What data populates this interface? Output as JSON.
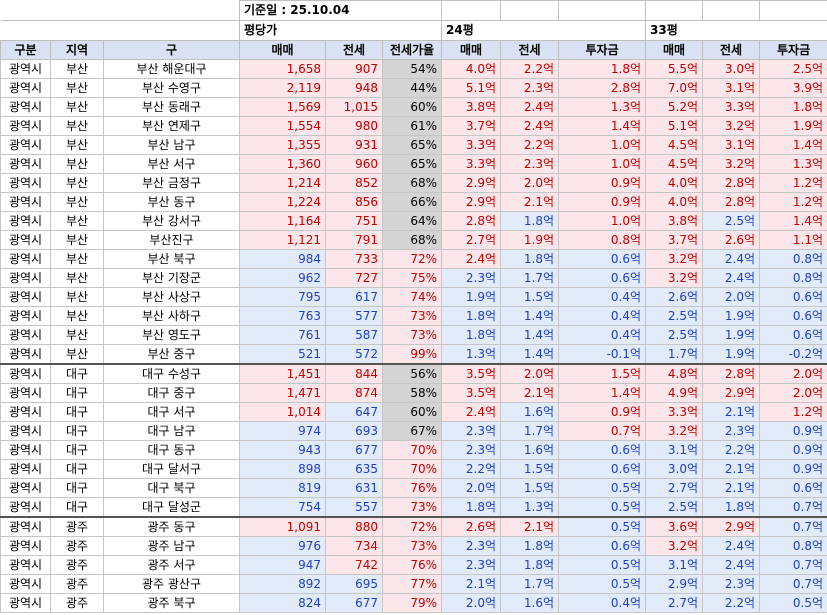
{
  "base_date_label": "기준일 : 25.10.04",
  "group_headers": {
    "price_per_pyeong": "평당가",
    "p24": "24평",
    "p33": "33평"
  },
  "columns": [
    "구분",
    "지역",
    "구",
    "매매",
    "전세",
    "전세가율",
    "매매",
    "전세",
    "투자금",
    "매매",
    "전세",
    "투자금"
  ],
  "rows": [
    {
      "type": "광역시",
      "region": "부산",
      "gu": "부산 해운대구",
      "sale": "1,658",
      "jeonse": "907",
      "ratio": "54%",
      "s24": "4.0억",
      "j24": "2.2억",
      "i24": "1.8억",
      "s33": "5.5억",
      "j33": "3.0억",
      "i33": "2.5억"
    },
    {
      "type": "광역시",
      "region": "부산",
      "gu": "부산 수영구",
      "sale": "2,119",
      "jeonse": "948",
      "ratio": "44%",
      "s24": "5.1억",
      "j24": "2.3억",
      "i24": "2.8억",
      "s33": "7.0억",
      "j33": "3.1억",
      "i33": "3.9억"
    },
    {
      "type": "광역시",
      "region": "부산",
      "gu": "부산 동래구",
      "sale": "1,569",
      "jeonse": "1,015",
      "ratio": "60%",
      "s24": "3.8억",
      "j24": "2.4억",
      "i24": "1.3억",
      "s33": "5.2억",
      "j33": "3.3억",
      "i33": "1.8억"
    },
    {
      "type": "광역시",
      "region": "부산",
      "gu": "부산 연제구",
      "sale": "1,554",
      "jeonse": "980",
      "ratio": "61%",
      "s24": "3.7억",
      "j24": "2.4억",
      "i24": "1.4억",
      "s33": "5.1억",
      "j33": "3.2억",
      "i33": "1.9억"
    },
    {
      "type": "광역시",
      "region": "부산",
      "gu": "부산 남구",
      "sale": "1,355",
      "jeonse": "931",
      "ratio": "65%",
      "s24": "3.3억",
      "j24": "2.2억",
      "i24": "1.0억",
      "s33": "4.5억",
      "j33": "3.1억",
      "i33": "1.4억"
    },
    {
      "type": "광역시",
      "region": "부산",
      "gu": "부산 서구",
      "sale": "1,360",
      "jeonse": "960",
      "ratio": "65%",
      "s24": "3.3억",
      "j24": "2.3억",
      "i24": "1.0억",
      "s33": "4.5억",
      "j33": "3.2억",
      "i33": "1.3억"
    },
    {
      "type": "광역시",
      "region": "부산",
      "gu": "부산 금정구",
      "sale": "1,214",
      "jeonse": "852",
      "ratio": "68%",
      "s24": "2.9억",
      "j24": "2.0억",
      "i24": "0.9억",
      "s33": "4.0억",
      "j33": "2.8억",
      "i33": "1.2억"
    },
    {
      "type": "광역시",
      "region": "부산",
      "gu": "부산 동구",
      "sale": "1,224",
      "jeonse": "856",
      "ratio": "66%",
      "s24": "2.9억",
      "j24": "2.1억",
      "i24": "0.9억",
      "s33": "4.0억",
      "j33": "2.8억",
      "i33": "1.2억"
    },
    {
      "type": "광역시",
      "region": "부산",
      "gu": "부산 강서구",
      "sale": "1,164",
      "jeonse": "751",
      "ratio": "64%",
      "s24": "2.8억",
      "j24": "1.8억",
      "i24": "1.0억",
      "s33": "3.8억",
      "j33": "2.5억",
      "i33": "1.4억"
    },
    {
      "type": "광역시",
      "region": "부산",
      "gu": "부산진구",
      "sale": "1,121",
      "jeonse": "791",
      "ratio": "68%",
      "s24": "2.7억",
      "j24": "1.9억",
      "i24": "0.8억",
      "s33": "3.7억",
      "j33": "2.6억",
      "i33": "1.1억"
    },
    {
      "type": "광역시",
      "region": "부산",
      "gu": "부산 북구",
      "sale": "984",
      "jeonse": "733",
      "ratio": "72%",
      "s24": "2.4억",
      "j24": "1.8억",
      "i24": "0.6억",
      "s33": "3.2억",
      "j33": "2.4억",
      "i33": "0.8억"
    },
    {
      "type": "광역시",
      "region": "부산",
      "gu": "부산 기장군",
      "sale": "962",
      "jeonse": "727",
      "ratio": "75%",
      "s24": "2.3억",
      "j24": "1.7억",
      "i24": "0.6억",
      "s33": "3.2억",
      "j33": "2.4억",
      "i33": "0.8억"
    },
    {
      "type": "광역시",
      "region": "부산",
      "gu": "부산 사상구",
      "sale": "795",
      "jeonse": "617",
      "ratio": "74%",
      "s24": "1.9억",
      "j24": "1.5억",
      "i24": "0.4억",
      "s33": "2.6억",
      "j33": "2.0억",
      "i33": "0.6억"
    },
    {
      "type": "광역시",
      "region": "부산",
      "gu": "부산 사하구",
      "sale": "763",
      "jeonse": "577",
      "ratio": "73%",
      "s24": "1.8억",
      "j24": "1.4억",
      "i24": "0.4억",
      "s33": "2.5억",
      "j33": "1.9억",
      "i33": "0.6억"
    },
    {
      "type": "광역시",
      "region": "부산",
      "gu": "부산 영도구",
      "sale": "761",
      "jeonse": "587",
      "ratio": "73%",
      "s24": "1.8억",
      "j24": "1.4억",
      "i24": "0.4억",
      "s33": "2.5억",
      "j33": "1.9억",
      "i33": "0.6억"
    },
    {
      "type": "광역시",
      "region": "부산",
      "gu": "부산 중구",
      "sale": "521",
      "jeonse": "572",
      "ratio": "99%",
      "s24": "1.3억",
      "j24": "1.4억",
      "i24": "-0.1억",
      "s33": "1.7억",
      "j33": "1.9억",
      "i33": "-0.2억"
    },
    {
      "type": "광역시",
      "region": "대구",
      "gu": "대구 수성구",
      "sale": "1,451",
      "jeonse": "844",
      "ratio": "56%",
      "s24": "3.5억",
      "j24": "2.0억",
      "i24": "1.5억",
      "s33": "4.8억",
      "j33": "2.8억",
      "i33": "2.0억"
    },
    {
      "type": "광역시",
      "region": "대구",
      "gu": "대구 중구",
      "sale": "1,471",
      "jeonse": "874",
      "ratio": "58%",
      "s24": "3.5억",
      "j24": "2.1억",
      "i24": "1.4억",
      "s33": "4.9억",
      "j33": "2.9억",
      "i33": "2.0억"
    },
    {
      "type": "광역시",
      "region": "대구",
      "gu": "대구 서구",
      "sale": "1,014",
      "jeonse": "647",
      "ratio": "60%",
      "s24": "2.4억",
      "j24": "1.6억",
      "i24": "0.9억",
      "s33": "3.3억",
      "j33": "2.1억",
      "i33": "1.2억"
    },
    {
      "type": "광역시",
      "region": "대구",
      "gu": "대구 남구",
      "sale": "974",
      "jeonse": "693",
      "ratio": "67%",
      "s24": "2.3억",
      "j24": "1.7억",
      "i24": "0.7억",
      "s33": "3.2억",
      "j33": "2.3억",
      "i33": "0.9억"
    },
    {
      "type": "광역시",
      "region": "대구",
      "gu": "대구 동구",
      "sale": "943",
      "jeonse": "677",
      "ratio": "70%",
      "s24": "2.3억",
      "j24": "1.6억",
      "i24": "0.6억",
      "s33": "3.1억",
      "j33": "2.2억",
      "i33": "0.9억"
    },
    {
      "type": "광역시",
      "region": "대구",
      "gu": "대구 달서구",
      "sale": "898",
      "jeonse": "635",
      "ratio": "70%",
      "s24": "2.2억",
      "j24": "1.5억",
      "i24": "0.6억",
      "s33": "3.0억",
      "j33": "2.1억",
      "i33": "0.9억"
    },
    {
      "type": "광역시",
      "region": "대구",
      "gu": "대구 북구",
      "sale": "819",
      "jeonse": "631",
      "ratio": "76%",
      "s24": "2.0억",
      "j24": "1.5억",
      "i24": "0.5억",
      "s33": "2.7억",
      "j33": "2.1억",
      "i33": "0.6억"
    },
    {
      "type": "광역시",
      "region": "대구",
      "gu": "대구 달성군",
      "sale": "754",
      "jeonse": "557",
      "ratio": "73%",
      "s24": "1.8억",
      "j24": "1.3억",
      "i24": "0.5억",
      "s33": "2.5억",
      "j33": "1.8억",
      "i33": "0.7억"
    },
    {
      "type": "광역시",
      "region": "광주",
      "gu": "광주 동구",
      "sale": "1,091",
      "jeonse": "880",
      "ratio": "72%",
      "s24": "2.6억",
      "j24": "2.1억",
      "i24": "0.5억",
      "s33": "3.6억",
      "j33": "2.9억",
      "i33": "0.7억"
    },
    {
      "type": "광역시",
      "region": "광주",
      "gu": "광주 남구",
      "sale": "976",
      "jeonse": "734",
      "ratio": "73%",
      "s24": "2.3억",
      "j24": "1.8억",
      "i24": "0.6억",
      "s33": "3.2억",
      "j33": "2.4억",
      "i33": "0.8억"
    },
    {
      "type": "광역시",
      "region": "광주",
      "gu": "광주 서구",
      "sale": "947",
      "jeonse": "742",
      "ratio": "76%",
      "s24": "2.3억",
      "j24": "1.8억",
      "i24": "0.5억",
      "s33": "3.1억",
      "j33": "2.4억",
      "i33": "0.7억"
    },
    {
      "type": "광역시",
      "region": "광주",
      "gu": "광주 광산구",
      "sale": "892",
      "jeonse": "695",
      "ratio": "77%",
      "s24": "2.1억",
      "j24": "1.7억",
      "i24": "0.5억",
      "s33": "2.9억",
      "j33": "2.3억",
      "i33": "0.7억"
    },
    {
      "type": "광역시",
      "region": "광주",
      "gu": "광주 북구",
      "sale": "824",
      "jeonse": "677",
      "ratio": "79%",
      "s24": "2.0억",
      "j24": "1.6억",
      "i24": "0.4억",
      "s33": "2.7억",
      "j33": "2.2억",
      "i33": "0.5억"
    }
  ]
}
